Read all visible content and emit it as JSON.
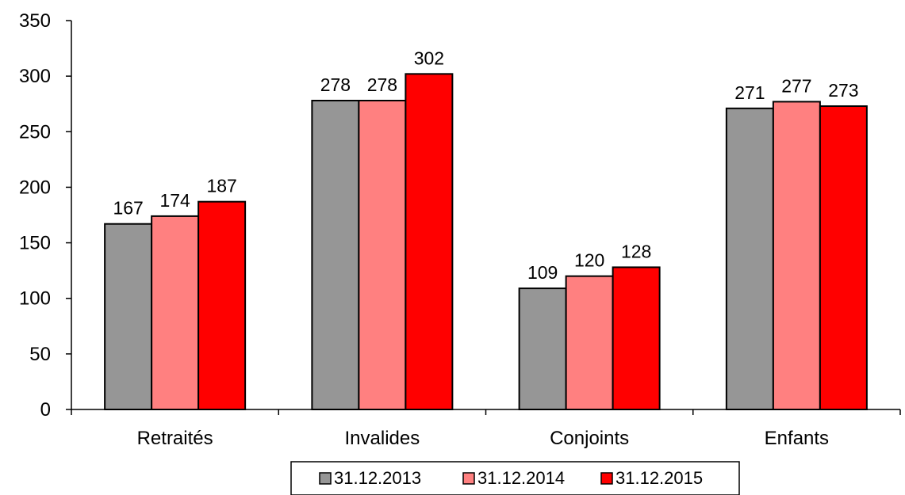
{
  "chart_data": {
    "type": "bar",
    "categories": [
      "Retraités",
      "Invalides",
      "Conjoints",
      "Enfants"
    ],
    "series": [
      {
        "name": "31.12.2013",
        "color": "#969696",
        "values": [
          167,
          278,
          109,
          271
        ]
      },
      {
        "name": "31.12.2014",
        "color": "#ff8080",
        "values": [
          174,
          278,
          120,
          277
        ]
      },
      {
        "name": "31.12.2015",
        "color": "#ff0000",
        "values": [
          187,
          302,
          128,
          273
        ]
      }
    ],
    "ylim": [
      0,
      350
    ],
    "yticks": [
      0,
      50,
      100,
      150,
      200,
      250,
      300,
      350
    ],
    "data_labels": true,
    "grid": false,
    "legend_position": "bottom"
  }
}
